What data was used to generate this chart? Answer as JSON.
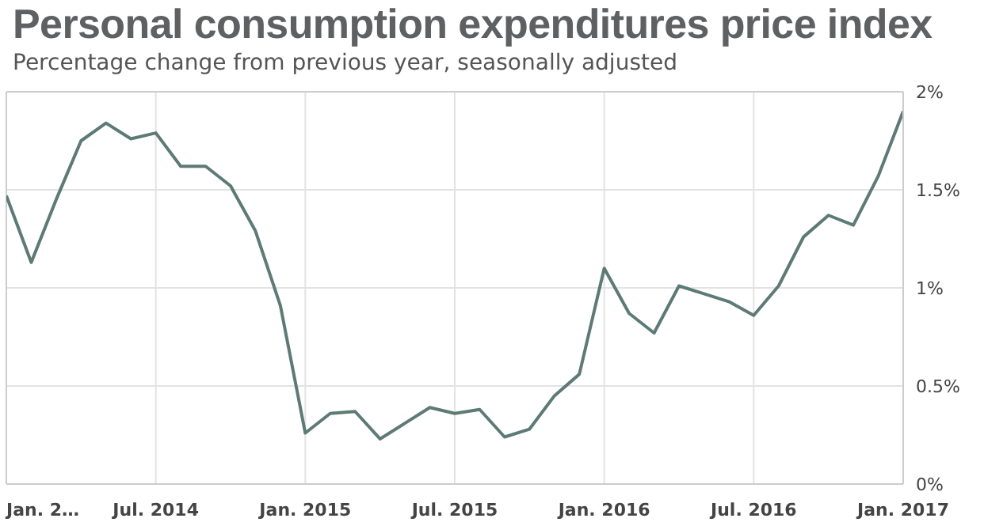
{
  "chart_data": {
    "type": "line",
    "title": "Personal consumption expenditures price index",
    "subtitle": "Percentage change from previous year, seasonally adjusted",
    "x": [
      "2014-01",
      "2014-02",
      "2014-03",
      "2014-04",
      "2014-05",
      "2014-06",
      "2014-07",
      "2014-08",
      "2014-09",
      "2014-10",
      "2014-11",
      "2014-12",
      "2015-01",
      "2015-02",
      "2015-03",
      "2015-04",
      "2015-05",
      "2015-06",
      "2015-07",
      "2015-08",
      "2015-09",
      "2015-10",
      "2015-11",
      "2015-12",
      "2016-01",
      "2016-02",
      "2016-03",
      "2016-04",
      "2016-05",
      "2016-06",
      "2016-07",
      "2016-08",
      "2016-09",
      "2016-10",
      "2016-11",
      "2016-12",
      "2017-01"
    ],
    "series": [
      {
        "color": "#5d7a74",
        "values": [
          1.47,
          1.13,
          1.45,
          1.75,
          1.84,
          1.76,
          1.79,
          1.62,
          1.62,
          1.52,
          1.29,
          0.91,
          0.26,
          0.36,
          0.37,
          0.23,
          0.31,
          0.39,
          0.36,
          0.38,
          0.24,
          0.28,
          0.45,
          0.56,
          1.1,
          0.87,
          0.77,
          1.01,
          0.97,
          0.93,
          0.86,
          1.01,
          1.26,
          1.37,
          1.32,
          1.57,
          1.9
        ]
      }
    ],
    "xlim": [
      "2014-01",
      "2017-01"
    ],
    "xticks": [
      {
        "value": "2014-01",
        "label": "Jan. 2…"
      },
      {
        "value": "2014-07",
        "label": "Jul. 2014"
      },
      {
        "value": "2015-01",
        "label": "Jan. 2015"
      },
      {
        "value": "2015-07",
        "label": "Jul. 2015"
      },
      {
        "value": "2016-01",
        "label": "Jan. 2016"
      },
      {
        "value": "2016-07",
        "label": "Jul. 2016"
      },
      {
        "value": "2017-01",
        "label": "Jan. 2017"
      }
    ],
    "ylim": [
      0,
      2
    ],
    "yticks": [
      {
        "value": 0,
        "label": "0%"
      },
      {
        "value": 0.5,
        "label": "0.5%"
      },
      {
        "value": 1,
        "label": "1%"
      },
      {
        "value": 1.5,
        "label": "1.5%"
      },
      {
        "value": 2,
        "label": "2%"
      }
    ],
    "grid": true,
    "marker": "none",
    "line_style": "solid"
  }
}
